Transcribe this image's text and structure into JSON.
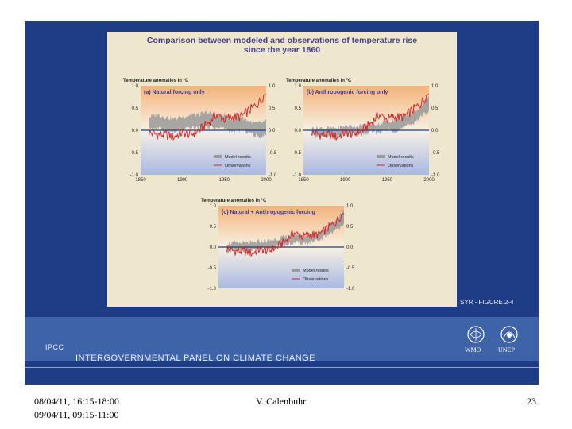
{
  "figure": {
    "title_line1": "Comparison between modeled and observations of temperature rise",
    "title_line2": "since the year 1860",
    "y_axis_label": "Temperature anomalies in °C",
    "caption": "SYR - FIGURE 2-4",
    "colors": {
      "background": "#efe7cd",
      "model_band": "#9a9a9a",
      "observations": "#d62020",
      "zero_line": "#1a3a8a",
      "warm_top": "#f4b27a",
      "cool_bottom": "#a9b9e3"
    }
  },
  "chart_data": [
    {
      "type": "line",
      "title": "(a) Natural forcing only",
      "ylabel": "Temperature anomalies in °C",
      "xlim": [
        1850,
        2000
      ],
      "ylim": [
        -1.0,
        1.0
      ],
      "x_ticks": [
        "1850",
        "1900",
        "1950",
        "2000"
      ],
      "y_ticks_left": [
        "1.0",
        "0.5",
        "0.0",
        "-0.5",
        "-1.0"
      ],
      "y_ticks_right": [
        "1.0",
        "0.5",
        "0.0",
        "-0.5",
        "-1.0"
      ],
      "legend": [
        "Model results",
        "Observations"
      ],
      "series": [
        {
          "name": "Observations",
          "x": [
            1860,
            1870,
            1880,
            1890,
            1900,
            1910,
            1920,
            1930,
            1940,
            1950,
            1960,
            1970,
            1980,
            1990,
            2000
          ],
          "values": [
            -0.05,
            -0.1,
            -0.1,
            -0.15,
            -0.05,
            -0.1,
            0.0,
            0.15,
            0.35,
            0.25,
            0.3,
            0.3,
            0.45,
            0.6,
            0.85
          ]
        },
        {
          "name": "Model results",
          "x": [
            1860,
            1870,
            1880,
            1890,
            1900,
            1910,
            1920,
            1930,
            1940,
            1950,
            1960,
            1970,
            1980,
            1990,
            2000
          ],
          "lower": [
            0.05,
            0.05,
            0.0,
            -0.05,
            0.0,
            0.05,
            0.05,
            0.1,
            0.05,
            0.05,
            -0.05,
            0.0,
            -0.05,
            -0.15,
            -0.1
          ],
          "upper": [
            0.3,
            0.35,
            0.3,
            0.25,
            0.3,
            0.35,
            0.35,
            0.4,
            0.35,
            0.35,
            0.25,
            0.3,
            0.2,
            0.15,
            0.2
          ]
        }
      ]
    },
    {
      "type": "line",
      "title": "(b) Anthropogenic forcing only",
      "ylabel": "Temperature anomalies in °C",
      "xlim": [
        1850,
        2000
      ],
      "ylim": [
        -1.0,
        1.0
      ],
      "x_ticks": [
        "1850",
        "1900",
        "1950",
        "2000"
      ],
      "y_ticks_left": [
        "1.0",
        "0.5",
        "0.0",
        "-0.5",
        "-1.0"
      ],
      "y_ticks_right": [
        "1.0",
        "0.5",
        "0.0",
        "-0.5",
        "-1.0"
      ],
      "legend": [
        "Model results",
        "Observations"
      ],
      "series": [
        {
          "name": "Observations",
          "x": [
            1860,
            1870,
            1880,
            1890,
            1900,
            1910,
            1920,
            1930,
            1940,
            1950,
            1960,
            1970,
            1980,
            1990,
            2000
          ],
          "values": [
            -0.05,
            -0.1,
            -0.1,
            -0.15,
            -0.05,
            -0.1,
            0.0,
            0.15,
            0.35,
            0.25,
            0.3,
            0.3,
            0.45,
            0.6,
            0.85
          ]
        },
        {
          "name": "Model results",
          "x": [
            1860,
            1870,
            1880,
            1890,
            1900,
            1910,
            1920,
            1930,
            1940,
            1950,
            1960,
            1970,
            1980,
            1990,
            2000
          ],
          "lower": [
            -0.15,
            -0.15,
            -0.15,
            -0.15,
            -0.1,
            -0.1,
            -0.1,
            -0.05,
            -0.05,
            0.0,
            0.0,
            0.05,
            0.15,
            0.3,
            0.45
          ],
          "upper": [
            0.05,
            0.05,
            0.05,
            0.05,
            0.1,
            0.1,
            0.1,
            0.15,
            0.15,
            0.2,
            0.25,
            0.3,
            0.4,
            0.55,
            0.75
          ]
        }
      ]
    },
    {
      "type": "line",
      "title": "(c) Natural + Anthropogenic forcing",
      "ylabel": "Temperature anomalies in °C",
      "xlim": [
        1850,
        2000
      ],
      "ylim": [
        -1.0,
        1.0
      ],
      "x_ticks": [],
      "y_ticks_left": [
        "1.0",
        "0.5",
        "0.0",
        "-0.5",
        "-1.0"
      ],
      "y_ticks_right": [
        "1.0",
        "0.5",
        "0.0",
        "-0.5",
        "-1.0"
      ],
      "legend": [
        "Model results",
        "Observations"
      ],
      "series": [
        {
          "name": "Observations",
          "x": [
            1860,
            1870,
            1880,
            1890,
            1900,
            1910,
            1920,
            1930,
            1940,
            1950,
            1960,
            1970,
            1980,
            1990,
            2000
          ],
          "values": [
            -0.05,
            -0.1,
            -0.1,
            -0.15,
            -0.05,
            -0.1,
            0.0,
            0.15,
            0.35,
            0.25,
            0.3,
            0.3,
            0.45,
            0.6,
            0.85
          ]
        },
        {
          "name": "Model results",
          "x": [
            1860,
            1870,
            1880,
            1890,
            1900,
            1910,
            1920,
            1930,
            1940,
            1950,
            1960,
            1970,
            1980,
            1990,
            2000
          ],
          "lower": [
            -0.1,
            -0.1,
            -0.1,
            -0.1,
            -0.05,
            -0.05,
            0.0,
            0.05,
            0.1,
            0.1,
            0.1,
            0.15,
            0.3,
            0.4,
            0.6
          ],
          "upper": [
            0.1,
            0.1,
            0.1,
            0.1,
            0.15,
            0.15,
            0.2,
            0.25,
            0.3,
            0.3,
            0.3,
            0.35,
            0.5,
            0.65,
            0.9
          ]
        }
      ]
    }
  ],
  "branding": {
    "ipcc_abbrev": "IPCC",
    "ipcc_full": "INTERGOVERNMENTAL PANEL ON CLIMATE CHANGE",
    "logo_wmo": "WMO",
    "logo_unep": "UNEP",
    "band_color": "#3f63a8",
    "slide_color": "#1f3c86"
  },
  "footer": {
    "date_line1": "08/04/11, 16:15-18:00",
    "date_line2": "09/04/11, 09:15-11:00",
    "author": "V. Calenbuhr",
    "page_number": "23"
  }
}
